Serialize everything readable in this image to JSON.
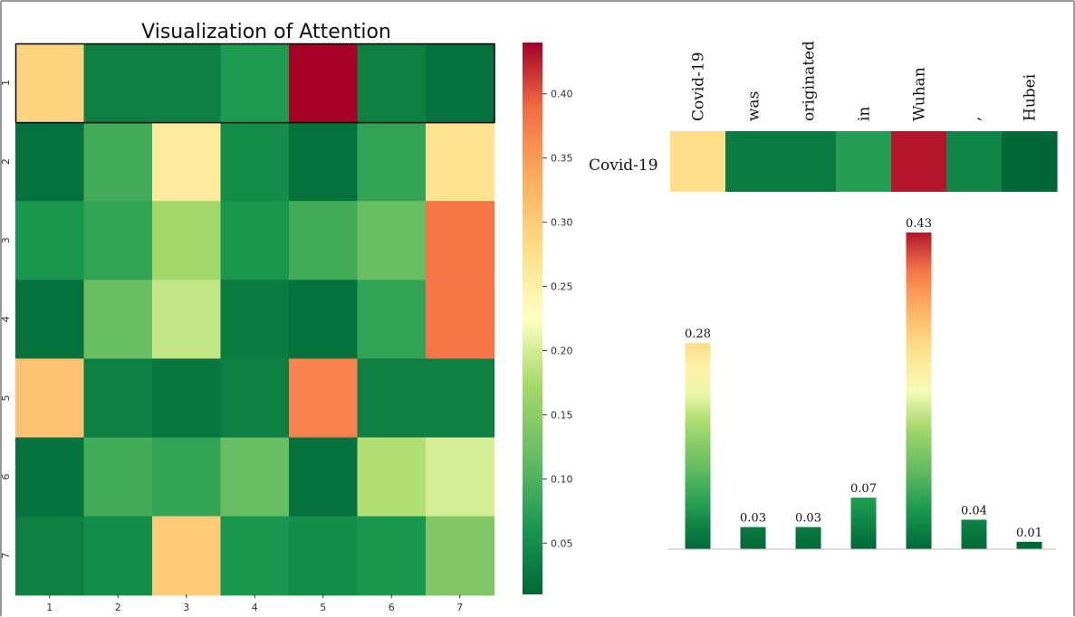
{
  "chart_data": [
    {
      "type": "heatmap",
      "title": "Visualization of Attention",
      "x_tick_labels": [
        "1",
        "2",
        "3",
        "4",
        "5",
        "6",
        "7"
      ],
      "y_tick_labels": [
        "1",
        "2",
        "3",
        "4",
        "5",
        "6",
        "7"
      ],
      "values": [
        [
          0.29,
          0.035,
          0.035,
          0.065,
          0.44,
          0.035,
          0.02
        ],
        [
          0.02,
          0.09,
          0.26,
          0.05,
          0.02,
          0.08,
          0.27
        ],
        [
          0.06,
          0.08,
          0.17,
          0.06,
          0.09,
          0.12,
          0.38
        ],
        [
          0.02,
          0.12,
          0.19,
          0.03,
          0.02,
          0.08,
          0.38
        ],
        [
          0.31,
          0.035,
          0.025,
          0.035,
          0.37,
          0.035,
          0.035
        ],
        [
          0.02,
          0.09,
          0.08,
          0.12,
          0.02,
          0.18,
          0.2
        ],
        [
          0.035,
          0.05,
          0.3,
          0.06,
          0.05,
          0.06,
          0.14
        ]
      ],
      "highlighted_row": 1,
      "colorbar": {
        "ticks": [
          "0.05",
          "0.10",
          "0.15",
          "0.20",
          "0.25",
          "0.30",
          "0.35",
          "0.40"
        ],
        "tick_values": [
          0.05,
          0.1,
          0.15,
          0.2,
          0.25,
          0.3,
          0.35,
          0.4
        ],
        "range": [
          0.01,
          0.44
        ],
        "colormap": "RdYlGn_r"
      }
    },
    {
      "type": "heatmap",
      "row_label": "Covid-19",
      "columns": [
        "Covid-19",
        "was",
        "originated",
        "in",
        "Wuhan",
        ",",
        "Hubei"
      ],
      "values": [
        0.28,
        0.03,
        0.03,
        0.07,
        0.43,
        0.04,
        0.01
      ]
    },
    {
      "type": "bar",
      "categories": [
        "Covid-19",
        "was",
        "originated",
        "in",
        "Wuhan",
        ",",
        "Hubei"
      ],
      "values": [
        0.28,
        0.03,
        0.03,
        0.07,
        0.43,
        0.04,
        0.01
      ],
      "value_labels": [
        "0.28",
        "0.03",
        "0.03",
        "0.07",
        "0.43",
        "0.04",
        "0.01"
      ],
      "ylim": [
        0,
        0.44
      ]
    }
  ]
}
